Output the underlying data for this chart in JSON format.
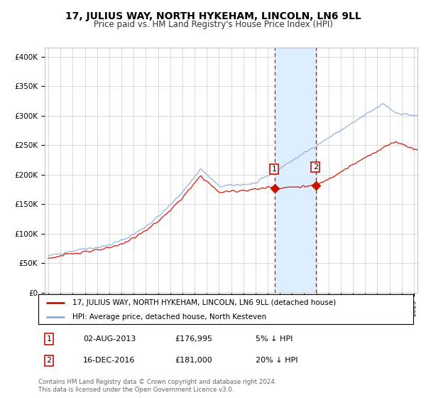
{
  "title": "17, JULIUS WAY, NORTH HYKEHAM, LINCOLN, LN6 9LL",
  "subtitle": "Price paid vs. HM Land Registry's House Price Index (HPI)",
  "title_fontsize": 10,
  "subtitle_fontsize": 8.5,
  "background_color": "#ffffff",
  "plot_bg_color": "#ffffff",
  "grid_color": "#cccccc",
  "ylabel_ticks": [
    "£0",
    "£50K",
    "£100K",
    "£150K",
    "£200K",
    "£250K",
    "£300K",
    "£350K",
    "£400K"
  ],
  "ytick_values": [
    0,
    50000,
    100000,
    150000,
    200000,
    250000,
    300000,
    350000,
    400000
  ],
  "ylim": [
    0,
    415000
  ],
  "xlim_left": 1994.7,
  "xlim_right": 2025.3,
  "sale1_x": 2013.58,
  "sale1_y": 176995,
  "sale2_x": 2016.97,
  "sale2_y": 181000,
  "shade_x1": 2013.58,
  "shade_x2": 2016.97,
  "shade_color": "#ddeeff",
  "hpi_color": "#88aadd",
  "price_color": "#cc1100",
  "legend_label_price": "17, JULIUS WAY, NORTH HYKEHAM, LINCOLN, LN6 9LL (detached house)",
  "legend_label_hpi": "HPI: Average price, detached house, North Kesteven",
  "footnote": "Contains HM Land Registry data © Crown copyright and database right 2024.\nThis data is licensed under the Open Government Licence v3.0.",
  "table_rows": [
    {
      "num": "1",
      "date": "02-AUG-2013",
      "price": "£176,995",
      "note": "5% ↓ HPI"
    },
    {
      "num": "2",
      "date": "16-DEC-2016",
      "price": "£181,000",
      "note": "20% ↓ HPI"
    }
  ]
}
